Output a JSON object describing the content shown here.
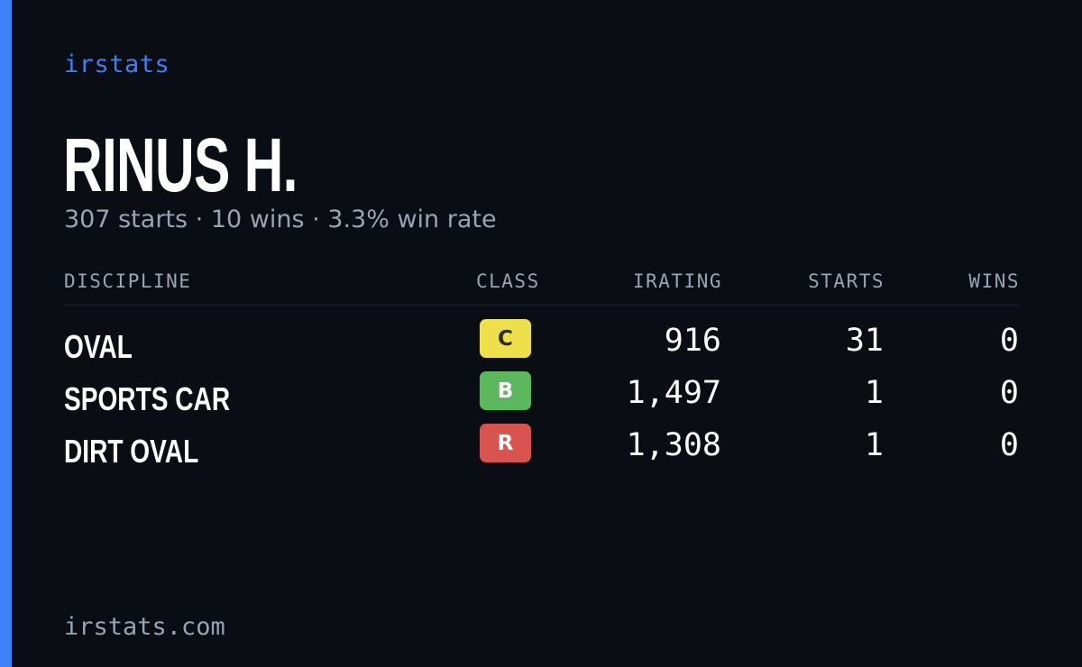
{
  "brand": "irstats",
  "player": {
    "name": "RINUS H.",
    "summary": "307 starts · 10 wins · 3.3% win rate"
  },
  "table": {
    "headers": {
      "discipline": "DISCIPLINE",
      "class": "CLASS",
      "irating": "IRATING",
      "starts": "STARTS",
      "wins": "WINS"
    },
    "rows": [
      {
        "discipline": "OVAL",
        "class": "C",
        "class_color": "#eee04a",
        "class_text_color": "#2a2a12",
        "irating": "916",
        "starts": "31",
        "wins": "0"
      },
      {
        "discipline": "SPORTS CAR",
        "class": "B",
        "class_color": "#5cb85c",
        "class_text_color": "#ffffff",
        "irating": "1,497",
        "starts": "1",
        "wins": "0"
      },
      {
        "discipline": "DIRT OVAL",
        "class": "R",
        "class_color": "#d9534f",
        "class_text_color": "#ffffff",
        "irating": "1,308",
        "starts": "1",
        "wins": "0"
      }
    ]
  },
  "footer": "irstats.com",
  "colors": {
    "background": "#0a0d14",
    "accent": "#3b82f6",
    "muted_text": "#9aa3b2"
  }
}
